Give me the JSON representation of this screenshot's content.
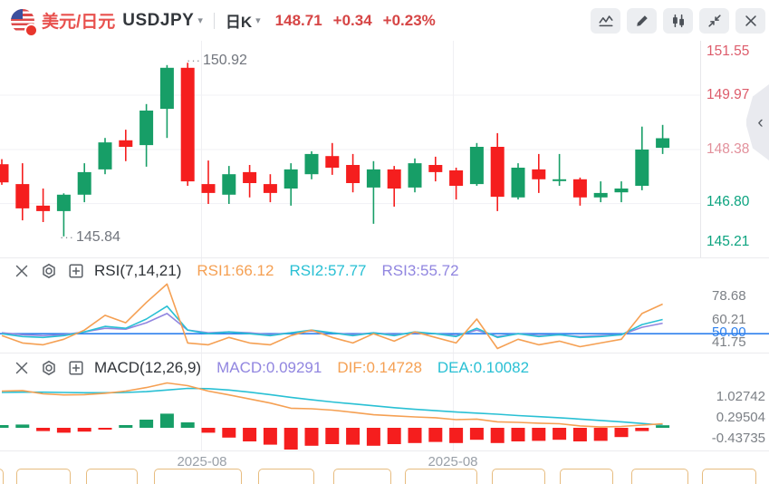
{
  "header": {
    "pair_name": "美元/日元",
    "symbol": "USDJPY",
    "period": "日K",
    "price": "148.71",
    "change": "+0.34",
    "change_pct": "+0.23%",
    "toolbar_icons": [
      "line-chart",
      "draw",
      "candlestick",
      "collapse",
      "close"
    ]
  },
  "price_axis": {
    "labels": [
      {
        "text": "151.55",
        "color": "#dd5c6b"
      },
      {
        "text": "149.97",
        "color": "#dd5c6b"
      },
      {
        "text": "148.38",
        "color": "#e2909b"
      },
      {
        "text": "146.80",
        "color": "#0ba37f"
      },
      {
        "text": "145.21",
        "color": "#0ba37f"
      }
    ]
  },
  "annotations": {
    "high": "150.92",
    "low": "145.84"
  },
  "x_axis": {
    "labels": [
      "2025-08",
      "2025-08"
    ]
  },
  "rsi_panel": {
    "title": "RSI(7,14,21)",
    "legend": [
      {
        "label": "RSI1:66.12",
        "color": "#f5a053"
      },
      {
        "label": "RSI2:57.77",
        "color": "#29c0d4"
      },
      {
        "label": "RSI3:55.72",
        "color": "#9186e0"
      }
    ],
    "axis_labels": [
      {
        "text": "78.68",
        "color": "#7c8086"
      },
      {
        "text": "60.21",
        "color": "#7c8086"
      },
      {
        "text": "50.00",
        "color": "#2f81ed"
      },
      {
        "text": "41.75",
        "color": "#7c8086"
      }
    ]
  },
  "macd_panel": {
    "title": "MACD(12,26,9)",
    "legend": [
      {
        "label": "MACD:0.09291",
        "color": "#9186e0"
      },
      {
        "label": "DIF:0.14728",
        "color": "#f5a053"
      },
      {
        "label": "DEA:0.10082",
        "color": "#29c0d4"
      }
    ],
    "axis_labels": [
      {
        "text": "1.02742"
      },
      {
        "text": "0.29504"
      },
      {
        "text": "-0.43735"
      }
    ]
  },
  "bottom_bar": {
    "button_count": 11
  },
  "colors": {
    "up": "#179e67",
    "down": "#f51e1e",
    "rsi1": "#f5a053",
    "rsi2": "#29c0d4",
    "rsi3": "#9186e0",
    "rsi_baseline": "#2f81ed",
    "dif": "#f5a053",
    "dea": "#29c0d4",
    "grid": "#f1f1f4"
  },
  "chart_data": {
    "type": "candlestick+indicators",
    "symbol": "USDJPY",
    "interval": "daily",
    "price_axis_ticks": [
      151.55,
      149.97,
      148.38,
      146.8,
      145.21
    ],
    "high_annotation": 150.92,
    "low_annotation": 145.84,
    "last_price": 148.71,
    "candles_ohlc": [
      [
        147.95,
        148.1,
        147.35,
        147.42
      ],
      [
        147.37,
        147.98,
        146.31,
        146.66
      ],
      [
        146.74,
        147.24,
        146.26,
        146.58
      ],
      [
        146.58,
        147.1,
        145.84,
        147.06
      ],
      [
        147.06,
        147.98,
        146.84,
        147.72
      ],
      [
        147.8,
        148.72,
        147.66,
        148.59
      ],
      [
        148.65,
        148.96,
        148.04,
        148.46
      ],
      [
        148.51,
        149.71,
        147.88,
        149.52
      ],
      [
        149.57,
        150.85,
        148.72,
        150.77
      ],
      [
        150.77,
        150.92,
        147.32,
        147.45
      ],
      [
        147.37,
        148.06,
        146.79,
        147.11
      ],
      [
        147.06,
        147.9,
        146.79,
        147.66
      ],
      [
        147.72,
        147.93,
        146.98,
        147.4
      ],
      [
        147.37,
        147.66,
        146.84,
        147.11
      ],
      [
        147.24,
        147.98,
        146.74,
        147.8
      ],
      [
        147.66,
        148.33,
        147.51,
        148.25
      ],
      [
        148.19,
        148.57,
        147.64,
        147.85
      ],
      [
        147.93,
        148.25,
        147.13,
        147.4
      ],
      [
        147.27,
        148.04,
        146.21,
        147.8
      ],
      [
        147.8,
        147.9,
        146.71,
        147.24
      ],
      [
        147.27,
        148.12,
        147.13,
        147.98
      ],
      [
        147.93,
        148.17,
        147.45,
        147.72
      ],
      [
        147.77,
        147.85,
        146.92,
        147.32
      ],
      [
        147.37,
        148.57,
        147.32,
        148.46
      ],
      [
        148.46,
        148.86,
        146.58,
        147.0
      ],
      [
        146.98,
        147.98,
        146.92,
        147.85
      ],
      [
        147.8,
        148.25,
        147.11,
        147.51
      ],
      [
        147.48,
        148.25,
        147.32,
        147.51
      ],
      [
        147.51,
        147.56,
        146.74,
        146.98
      ],
      [
        146.98,
        147.45,
        146.84,
        147.11
      ],
      [
        147.13,
        147.45,
        146.84,
        147.24
      ],
      [
        147.32,
        149.05,
        147.19,
        148.38
      ],
      [
        148.43,
        149.1,
        148.25,
        148.71
      ]
    ],
    "rsi": {
      "params": [
        7,
        14,
        21
      ],
      "baseline": 50,
      "axis_range": [
        41.75,
        78.68
      ],
      "rsi1": [
        49,
        45,
        44,
        47,
        52,
        60,
        56,
        67,
        77,
        45,
        44,
        48,
        45,
        44,
        49,
        52,
        48,
        45,
        50,
        46,
        51,
        48,
        45,
        58,
        42,
        47,
        44,
        46,
        43,
        45,
        47,
        61,
        66.12
      ],
      "rsi2": [
        50,
        48.5,
        48,
        49,
        51,
        54,
        53,
        58,
        65,
        52,
        50,
        51,
        50,
        49,
        50.5,
        52,
        50.5,
        49,
        50.5,
        49,
        51,
        50,
        48.5,
        53,
        48,
        50,
        48.5,
        49.5,
        48,
        48.5,
        49.5,
        55,
        57.77
      ],
      "rsi3": [
        50.5,
        49.5,
        49,
        49.5,
        51,
        53,
        52.5,
        56,
        61,
        52,
        50.5,
        51,
        50.5,
        49.5,
        50.5,
        51.5,
        50.5,
        49.5,
        50.5,
        49.5,
        50.5,
        50,
        49,
        52,
        48.5,
        50,
        49,
        49.5,
        48.5,
        49,
        49.5,
        53.5,
        55.72
      ]
    },
    "macd": {
      "params": [
        12,
        26,
        9
      ],
      "axis_ticks": [
        1.02742,
        0.29504,
        -0.43735
      ],
      "hist_rule": "hist = 2*(dif-dea)",
      "dif": [
        1.35,
        1.37,
        1.25,
        1.21,
        1.22,
        1.27,
        1.35,
        1.48,
        1.65,
        1.55,
        1.35,
        1.21,
        1.06,
        0.91,
        0.72,
        0.7,
        0.65,
        0.57,
        0.48,
        0.44,
        0.4,
        0.37,
        0.3,
        0.32,
        0.22,
        0.2,
        0.17,
        0.15,
        0.07,
        0.03,
        0.05,
        0.1,
        0.14728
      ],
      "dea": [
        1.3,
        1.31,
        1.31,
        1.3,
        1.29,
        1.29,
        1.3,
        1.33,
        1.39,
        1.45,
        1.44,
        1.39,
        1.31,
        1.22,
        1.12,
        1.03,
        0.95,
        0.88,
        0.81,
        0.74,
        0.68,
        0.63,
        0.58,
        0.54,
        0.5,
        0.45,
        0.41,
        0.37,
        0.32,
        0.27,
        0.22,
        0.16,
        0.10082
      ],
      "last": {
        "macd": 0.09291,
        "dif": 0.14728,
        "dea": 0.10082
      }
    },
    "x_axis_labels": [
      "2025-08",
      "2025-08"
    ]
  }
}
